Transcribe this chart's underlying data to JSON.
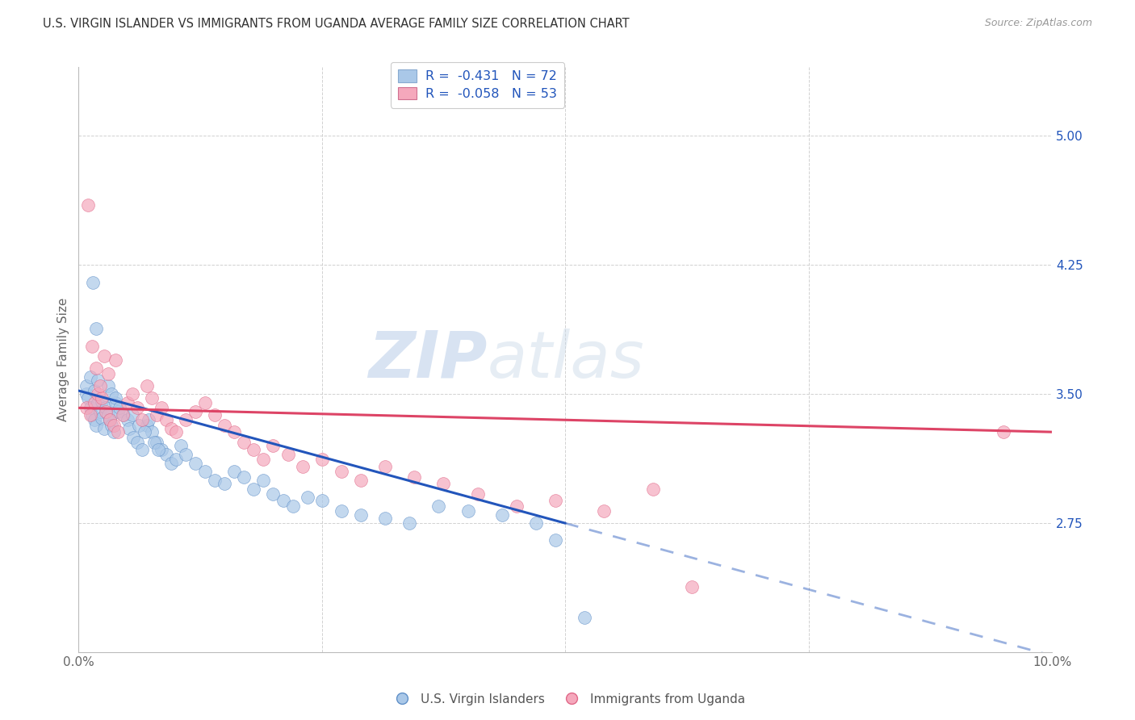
{
  "title": "U.S. VIRGIN ISLANDER VS IMMIGRANTS FROM UGANDA AVERAGE FAMILY SIZE CORRELATION CHART",
  "source": "Source: ZipAtlas.com",
  "ylabel": "Average Family Size",
  "xlim": [
    0.0,
    10.0
  ],
  "ylim": [
    2.0,
    5.4
  ],
  "yticks": [
    2.75,
    3.5,
    4.25,
    5.0
  ],
  "xticks": [
    0.0,
    2.5,
    5.0,
    7.5,
    10.0
  ],
  "xtick_labels": [
    "0.0%",
    "",
    "",
    "",
    "10.0%"
  ],
  "legend_entry1": "R =  -0.431   N = 72",
  "legend_entry2": "R =  -0.058   N = 53",
  "series1_label": "U.S. Virgin Islanders",
  "series2_label": "Immigrants from Uganda",
  "series1_color": "#aac8e8",
  "series2_color": "#f5a8bc",
  "series1_edge": "#6090c8",
  "series2_edge": "#e06888",
  "line1_color": "#2255bb",
  "line2_color": "#dd4466",
  "watermark_zip": "ZIP",
  "watermark_atlas": "atlas",
  "blue_x": [
    0.08,
    0.1,
    0.12,
    0.14,
    0.16,
    0.18,
    0.2,
    0.22,
    0.24,
    0.26,
    0.08,
    0.12,
    0.16,
    0.2,
    0.24,
    0.28,
    0.3,
    0.32,
    0.34,
    0.36,
    0.38,
    0.4,
    0.3,
    0.34,
    0.38,
    0.42,
    0.46,
    0.5,
    0.52,
    0.56,
    0.6,
    0.65,
    0.7,
    0.75,
    0.8,
    0.85,
    0.9,
    0.95,
    1.0,
    1.05,
    0.55,
    0.62,
    0.68,
    0.72,
    0.78,
    0.82,
    1.1,
    1.2,
    1.3,
    1.4,
    1.5,
    1.6,
    1.7,
    1.8,
    1.9,
    2.0,
    2.1,
    2.2,
    2.35,
    2.5,
    2.7,
    2.9,
    3.15,
    3.4,
    3.7,
    4.0,
    4.35,
    4.7,
    0.15,
    0.18,
    5.2,
    4.9
  ],
  "blue_y": [
    3.5,
    3.48,
    3.42,
    3.38,
    3.35,
    3.32,
    3.45,
    3.4,
    3.36,
    3.3,
    3.55,
    3.6,
    3.52,
    3.58,
    3.46,
    3.42,
    3.38,
    3.35,
    3.32,
    3.28,
    3.45,
    3.4,
    3.55,
    3.5,
    3.48,
    3.42,
    3.38,
    3.35,
    3.3,
    3.25,
    3.22,
    3.18,
    3.32,
    3.28,
    3.22,
    3.18,
    3.15,
    3.1,
    3.12,
    3.2,
    3.38,
    3.32,
    3.28,
    3.35,
    3.22,
    3.18,
    3.15,
    3.1,
    3.05,
    3.0,
    2.98,
    3.05,
    3.02,
    2.95,
    3.0,
    2.92,
    2.88,
    2.85,
    2.9,
    2.88,
    2.82,
    2.8,
    2.78,
    2.75,
    2.85,
    2.82,
    2.8,
    2.75,
    4.15,
    3.88,
    2.2,
    2.65
  ],
  "pink_x": [
    0.08,
    0.12,
    0.16,
    0.2,
    0.24,
    0.28,
    0.32,
    0.36,
    0.4,
    0.45,
    0.5,
    0.55,
    0.6,
    0.65,
    0.7,
    0.75,
    0.8,
    0.85,
    0.9,
    0.95,
    1.0,
    1.1,
    1.2,
    1.3,
    1.4,
    1.5,
    1.6,
    1.7,
    1.8,
    1.9,
    2.0,
    2.15,
    2.3,
    2.5,
    2.7,
    2.9,
    3.15,
    3.45,
    3.75,
    4.1,
    4.5,
    4.9,
    5.4,
    5.9,
    9.5,
    0.1,
    0.14,
    0.18,
    0.22,
    0.26,
    0.3,
    0.38,
    6.3
  ],
  "pink_y": [
    3.42,
    3.38,
    3.45,
    3.5,
    3.48,
    3.4,
    3.35,
    3.32,
    3.28,
    3.38,
    3.45,
    3.5,
    3.42,
    3.35,
    3.55,
    3.48,
    3.38,
    3.42,
    3.35,
    3.3,
    3.28,
    3.35,
    3.4,
    3.45,
    3.38,
    3.32,
    3.28,
    3.22,
    3.18,
    3.12,
    3.2,
    3.15,
    3.08,
    3.12,
    3.05,
    3.0,
    3.08,
    3.02,
    2.98,
    2.92,
    2.85,
    2.88,
    2.82,
    2.95,
    3.28,
    4.6,
    3.78,
    3.65,
    3.55,
    3.72,
    3.62,
    3.7,
    2.38
  ],
  "blue_reg_x0": 0.0,
  "blue_reg_y0": 3.52,
  "blue_reg_x1": 5.0,
  "blue_reg_y1": 2.75,
  "blue_solid_end": 5.0,
  "blue_dash_end": 10.0,
  "pink_reg_x0": 0.0,
  "pink_reg_y0": 3.42,
  "pink_reg_x1": 10.0,
  "pink_reg_y1": 3.28
}
